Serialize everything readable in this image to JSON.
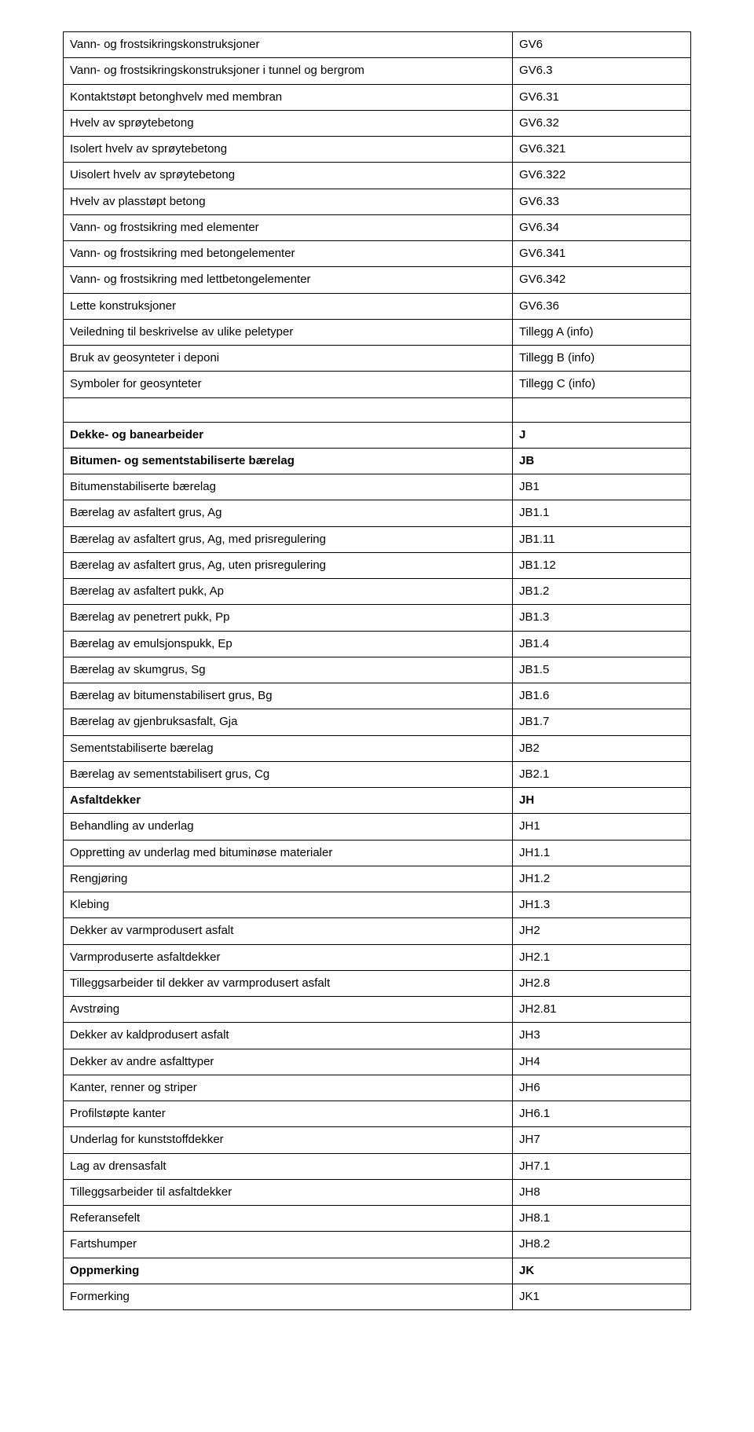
{
  "rows": [
    {
      "label": "Vann- og frostsikringskonstruksjoner",
      "code": "GV6",
      "bold": false
    },
    {
      "label": "Vann- og frostsikringskonstruksjoner i tunnel og bergrom",
      "code": "GV6.3",
      "bold": false
    },
    {
      "label": "Kontaktstøpt betonghvelv med membran",
      "code": "GV6.31",
      "bold": false
    },
    {
      "label": "Hvelv av sprøytebetong",
      "code": "GV6.32",
      "bold": false
    },
    {
      "label": "Isolert hvelv av sprøytebetong",
      "code": "GV6.321",
      "bold": false
    },
    {
      "label": "Uisolert hvelv av sprøytebetong",
      "code": "GV6.322",
      "bold": false
    },
    {
      "label": "Hvelv av plasstøpt betong",
      "code": "GV6.33",
      "bold": false
    },
    {
      "label": "Vann- og frostsikring med elementer",
      "code": "GV6.34",
      "bold": false
    },
    {
      "label": "Vann- og frostsikring med betongelementer",
      "code": "GV6.341",
      "bold": false
    },
    {
      "label": "Vann- og frostsikring med lettbetongelementer",
      "code": "GV6.342",
      "bold": false
    },
    {
      "label": "Lette konstruksjoner",
      "code": "GV6.36",
      "bold": false
    },
    {
      "label": "Veiledning til beskrivelse av ulike peletyper",
      "code": "Tillegg A (info)",
      "bold": false
    },
    {
      "label": "Bruk av geosynteter i deponi",
      "code": "Tillegg B (info)",
      "bold": false
    },
    {
      "label": "Symboler for geosynteter",
      "code": "Tillegg C (info)",
      "bold": false
    },
    {
      "empty": true
    },
    {
      "label": "Dekke- og banearbeider",
      "code": "J",
      "bold": true
    },
    {
      "label": "Bitumen- og sementstabiliserte bærelag",
      "code": "JB",
      "bold": true
    },
    {
      "label": "Bitumenstabiliserte bærelag",
      "code": "JB1",
      "bold": false
    },
    {
      "label": "Bærelag av asfaltert grus, Ag",
      "code": "JB1.1",
      "bold": false
    },
    {
      "label": "Bærelag av asfaltert grus, Ag, med prisregulering",
      "code": "JB1.11",
      "bold": false
    },
    {
      "label": "Bærelag av asfaltert grus, Ag, uten prisregulering",
      "code": "JB1.12",
      "bold": false
    },
    {
      "label": "Bærelag av asfaltert pukk, Ap",
      "code": "JB1.2",
      "bold": false
    },
    {
      "label": "Bærelag av penetrert pukk, Pp",
      "code": "JB1.3",
      "bold": false
    },
    {
      "label": "Bærelag av emulsjonspukk, Ep",
      "code": "JB1.4",
      "bold": false
    },
    {
      "label": "Bærelag av skumgrus, Sg",
      "code": "JB1.5",
      "bold": false
    },
    {
      "label": "Bærelag av bitumenstabilisert grus, Bg",
      "code": "JB1.6",
      "bold": false
    },
    {
      "label": "Bærelag av gjenbruksasfalt, Gja",
      "code": "JB1.7",
      "bold": false
    },
    {
      "label": "Sementstabiliserte bærelag",
      "code": "JB2",
      "bold": false
    },
    {
      "label": "Bærelag av sementstabilisert grus, Cg",
      "code": "JB2.1",
      "bold": false
    },
    {
      "label": "Asfaltdekker",
      "code": "JH",
      "bold": true
    },
    {
      "label": "Behandling av underlag",
      "code": "JH1",
      "bold": false
    },
    {
      "label": "Oppretting av underlag med bituminøse materialer",
      "code": "JH1.1",
      "bold": false
    },
    {
      "label": "Rengjøring",
      "code": "JH1.2",
      "bold": false
    },
    {
      "label": "Klebing",
      "code": "JH1.3",
      "bold": false
    },
    {
      "label": "Dekker av varmprodusert asfalt",
      "code": "JH2",
      "bold": false
    },
    {
      "label": "Varmproduserte asfaltdekker",
      "code": "JH2.1",
      "bold": false
    },
    {
      "label": "Tilleggsarbeider til dekker av varmprodusert asfalt",
      "code": "JH2.8",
      "bold": false
    },
    {
      "label": "Avstrøing",
      "code": "JH2.81",
      "bold": false
    },
    {
      "label": "Dekker av kaldprodusert asfalt",
      "code": "JH3",
      "bold": false
    },
    {
      "label": "Dekker av andre asfalttyper",
      "code": "JH4",
      "bold": false
    },
    {
      "label": "Kanter, renner og striper",
      "code": "JH6",
      "bold": false
    },
    {
      "label": "Profilstøpte kanter",
      "code": "JH6.1",
      "bold": false
    },
    {
      "label": "Underlag for kunststoffdekker",
      "code": "JH7",
      "bold": false
    },
    {
      "label": "Lag av drensasfalt",
      "code": "JH7.1",
      "bold": false
    },
    {
      "label": "Tilleggsarbeider til asfaltdekker",
      "code": "JH8",
      "bold": false
    },
    {
      "label": "Referansefelt",
      "code": "JH8.1",
      "bold": false
    },
    {
      "label": "Fartshumper",
      "code": "JH8.2",
      "bold": false
    },
    {
      "label": "Oppmerking",
      "code": "JK",
      "bold": true
    },
    {
      "label": "Formerking",
      "code": "JK1",
      "bold": false
    }
  ]
}
